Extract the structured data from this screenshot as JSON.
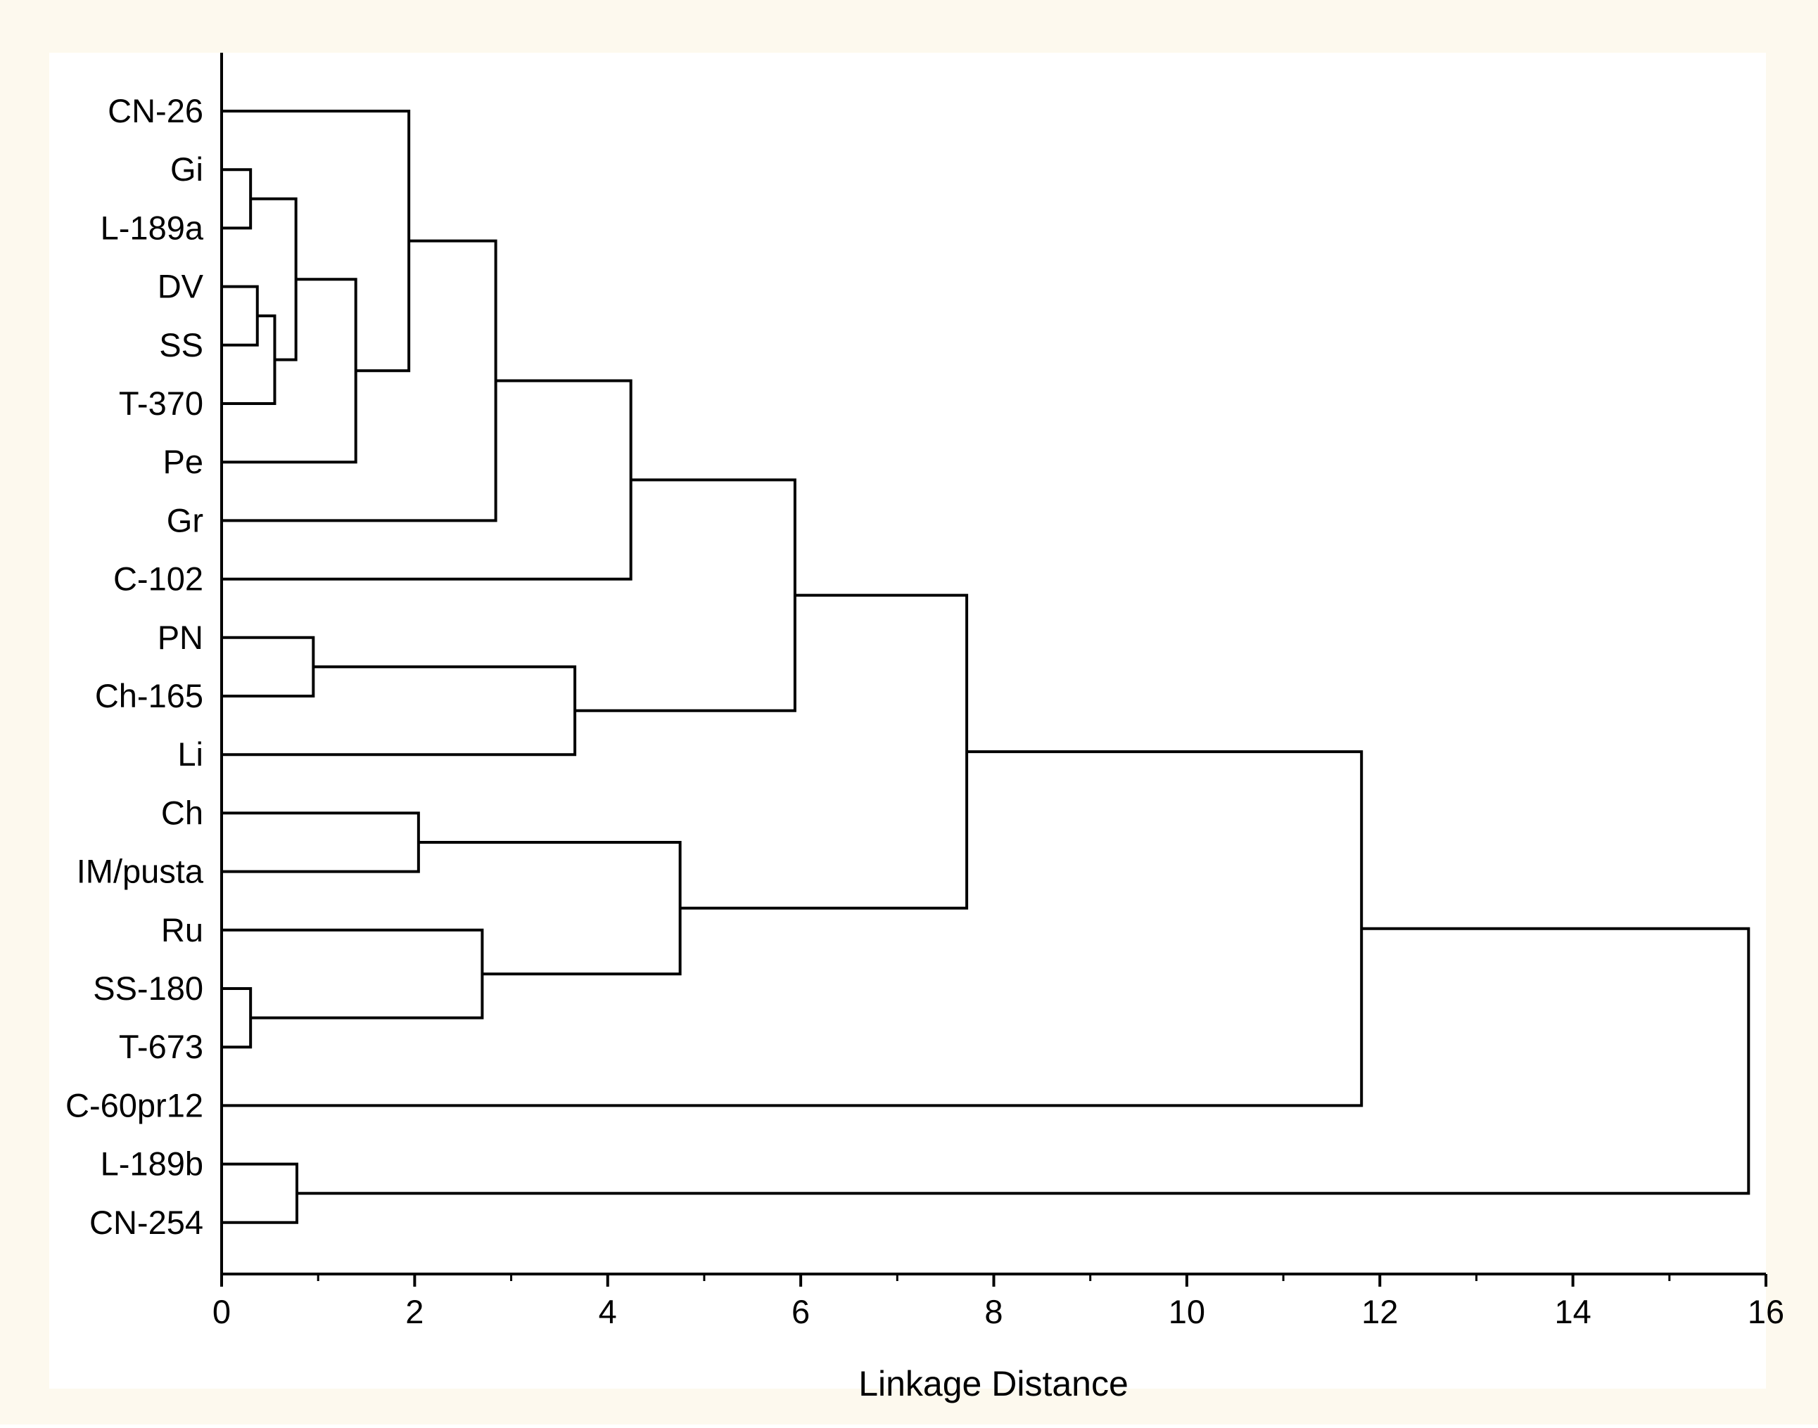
{
  "colors": {
    "frame_background": "#fdf9ee",
    "plot_background": "#ffffff",
    "line": "#000000"
  },
  "chart_data": {
    "type": "dendrogram",
    "orientation": "horizontal",
    "xlabel": "Linkage Distance",
    "xlim": [
      0,
      16
    ],
    "x_ticks": [
      0,
      2,
      4,
      6,
      8,
      10,
      12,
      14,
      16
    ],
    "x_tick_labels": [
      "0",
      "2",
      "4",
      "6",
      "8",
      "10",
      "12",
      "14",
      "16"
    ],
    "leaves": [
      "CN-26",
      "Gi",
      "L-189a",
      "DV",
      "SS",
      "T-370",
      "Pe",
      "Gr",
      "C-102",
      "PN",
      "Ch-165",
      "Li",
      "Ch",
      "IM/pusta",
      "Ru",
      "SS-180",
      "T-673",
      "C-60pr12",
      "L-189b",
      "CN-254"
    ],
    "merges": [
      {
        "id": "n1",
        "left": "Gi",
        "right": "L-189a",
        "height": 0.3
      },
      {
        "id": "n2",
        "left": "DV",
        "right": "SS",
        "height": 0.37
      },
      {
        "id": "n3",
        "left": "n2",
        "right": "T-370",
        "height": 0.55
      },
      {
        "id": "n4",
        "left": "n1",
        "right": "n3",
        "height": 0.77
      },
      {
        "id": "n5",
        "left": "n4",
        "right": "Pe",
        "height": 1.39
      },
      {
        "id": "n6",
        "left": "CN-26",
        "right": "n5",
        "height": 1.94
      },
      {
        "id": "n7",
        "left": "n6",
        "right": "Gr",
        "height": 2.84
      },
      {
        "id": "n8",
        "left": "n7",
        "right": "C-102",
        "height": 4.24
      },
      {
        "id": "n9",
        "left": "PN",
        "right": "Ch-165",
        "height": 0.95
      },
      {
        "id": "n10",
        "left": "n9",
        "right": "Li",
        "height": 3.66
      },
      {
        "id": "n11",
        "left": "n8",
        "right": "n10",
        "height": 5.94
      },
      {
        "id": "n12",
        "left": "Ch",
        "right": "IM/pusta",
        "height": 2.04
      },
      {
        "id": "n13",
        "left": "SS-180",
        "right": "T-673",
        "height": 0.3
      },
      {
        "id": "n14",
        "left": "Ru",
        "right": "n13",
        "height": 2.7
      },
      {
        "id": "n15",
        "left": "n12",
        "right": "n14",
        "height": 4.75
      },
      {
        "id": "n16",
        "left": "n11",
        "right": "n15",
        "height": 7.72
      },
      {
        "id": "n17",
        "left": "n16",
        "right": "C-60pr12",
        "height": 11.81
      },
      {
        "id": "n18",
        "left": "L-189b",
        "right": "CN-254",
        "height": 0.78
      },
      {
        "id": "n19",
        "left": "n17",
        "right": "n18",
        "height": 15.82
      }
    ]
  }
}
